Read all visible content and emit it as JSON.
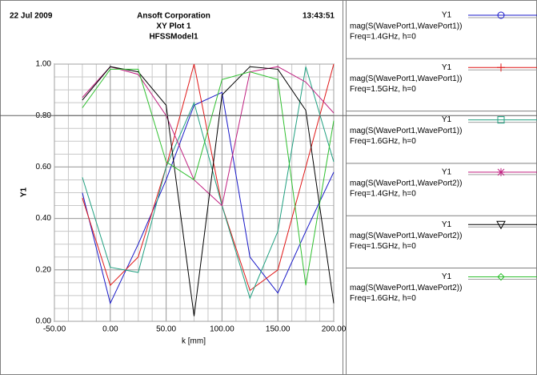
{
  "chart_data": {
    "type": "line",
    "date": "22 Jul 2009",
    "time": "13:43:51",
    "title": "Ansoft Corporation",
    "subtitle": "XY Plot 1",
    "design": "HFSSModel1",
    "x_label": "k [mm]",
    "y_label": "Y1",
    "x": [
      -25,
      0,
      25,
      50,
      75,
      100,
      125,
      150,
      175,
      200
    ],
    "series": [
      {
        "legend_title": "Y1",
        "name": "mag(S(WavePort1,WavePort1))",
        "legend_note": "Freq=1.4GHz, h=0",
        "color": "#1818c8",
        "marker": "circle",
        "values": [
          0.5,
          0.07,
          0.3,
          0.55,
          0.84,
          0.89,
          0.25,
          0.11,
          0.35,
          0.58
        ]
      },
      {
        "legend_title": "Y1",
        "name": "mag(S(WavePort1,WavePort1))",
        "legend_note": "Freq=1.5GHz, h=0",
        "color": "#e01818",
        "marker": "plus",
        "values": [
          0.48,
          0.14,
          0.25,
          0.6,
          1.0,
          0.45,
          0.12,
          0.2,
          0.6,
          1.0
        ]
      },
      {
        "legend_title": "Y1",
        "name": "mag(S(WavePort1,WavePort1))",
        "legend_note": "Freq=1.6GHz, h=0",
        "color": "#20a080",
        "marker": "square",
        "values": [
          0.56,
          0.21,
          0.19,
          0.6,
          0.85,
          0.45,
          0.09,
          0.35,
          0.99,
          0.62
        ]
      },
      {
        "legend_title": "Y1",
        "name": "mag(S(WavePort1,WavePort2))",
        "legend_note": "Freq=1.4GHz, h=0",
        "color": "#c02080",
        "marker": "asterisk",
        "values": [
          0.87,
          0.99,
          0.96,
          0.8,
          0.55,
          0.45,
          0.97,
          0.99,
          0.93,
          0.81
        ]
      },
      {
        "legend_title": "Y1",
        "name": "mag(S(WavePort1,WavePort2))",
        "legend_note": "Freq=1.5GHz, h=0",
        "color": "#000000",
        "marker": "triangle",
        "values": [
          0.86,
          0.99,
          0.97,
          0.84,
          0.02,
          0.88,
          0.99,
          0.98,
          0.82,
          0.07
        ]
      },
      {
        "legend_title": "Y1",
        "name": "mag(S(WavePort1,WavePort2))",
        "legend_note": "Freq=1.6GHz, h=0",
        "color": "#30c030",
        "marker": "diamond",
        "values": [
          0.83,
          0.98,
          0.98,
          0.62,
          0.55,
          0.94,
          0.97,
          0.94,
          0.14,
          0.78
        ]
      }
    ],
    "xlim": [
      -50,
      200
    ],
    "ylim": [
      0,
      1
    ],
    "xticks": [
      {
        "value": -50,
        "label": "-50.00"
      },
      {
        "value": 0,
        "label": "0.00"
      },
      {
        "value": 50,
        "label": "50.00"
      },
      {
        "value": 100,
        "label": "100.00"
      },
      {
        "value": 150,
        "label": "150.00"
      },
      {
        "value": 200,
        "label": "200.00"
      }
    ],
    "yticks": [
      {
        "value": 0,
        "label": "0.00"
      },
      {
        "value": 0.2,
        "label": "0.20"
      },
      {
        "value": 0.4,
        "label": "0.40"
      },
      {
        "value": 0.6,
        "label": "0.60"
      },
      {
        "value": 0.8,
        "label": "0.80"
      },
      {
        "value": 1,
        "label": "1.00"
      }
    ],
    "grid": true,
    "minor_xstep": 12.5,
    "minor_ystep": 0.05
  }
}
